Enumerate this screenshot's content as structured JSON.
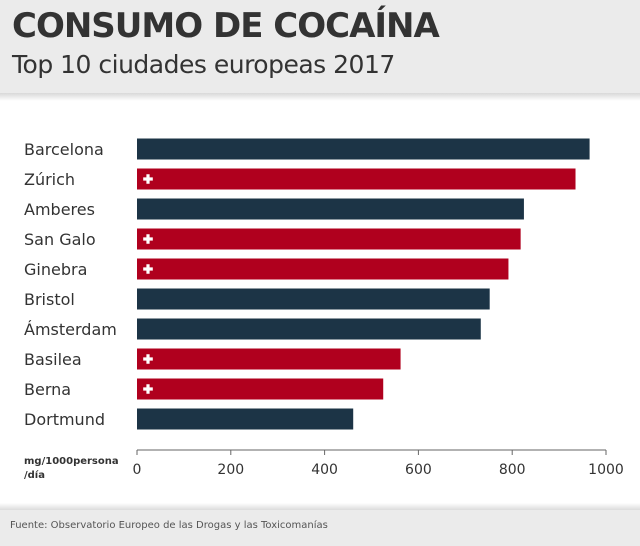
{
  "header": {
    "title": "CONSUMO DE COCAÍNA",
    "subtitle": "Top 10 ciudades europeas 2017"
  },
  "footer": {
    "source": "Fuente: Observatorio Europeo de las Drogas y las Toxicomanías"
  },
  "colors": {
    "swiss": "#b0001e",
    "other": "#1c3446",
    "header_bg": "#ebebeb"
  },
  "chart_data": {
    "type": "bar",
    "orientation": "horizontal",
    "categories": [
      "Barcelona",
      "Zúrich",
      "Amberes",
      "San Galo",
      "Ginebra",
      "Bristol",
      "Ámsterdam",
      "Basilea",
      "Berna",
      "Dortmund"
    ],
    "values": [
      965,
      935,
      825,
      818,
      792,
      752,
      733,
      562,
      525,
      461
    ],
    "swiss_city": [
      false,
      true,
      false,
      true,
      true,
      false,
      false,
      true,
      true,
      false
    ],
    "unit_label": [
      "mg/1000persona",
      "/día"
    ],
    "xlim": [
      0,
      1000
    ],
    "xticks": [
      0,
      200,
      400,
      600,
      800,
      1000
    ],
    "grid": false,
    "marker": "swiss-cross-icon"
  }
}
